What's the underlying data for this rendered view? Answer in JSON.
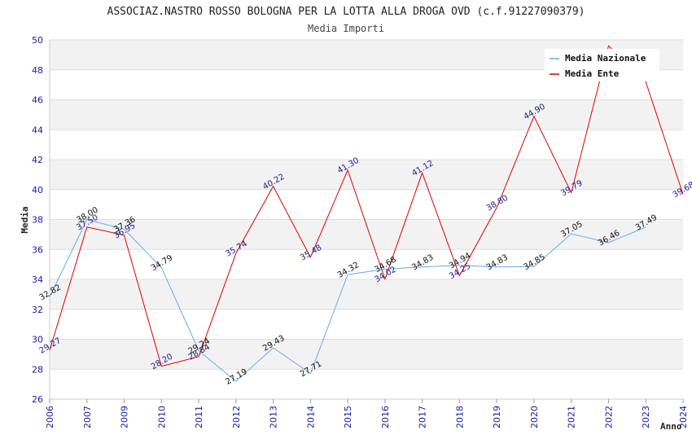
{
  "chart_data": {
    "type": "line",
    "title": "ASSOCIAZ.NASTRO ROSSO BOLOGNA PER LA LOTTA ALLA DROGA OVD (c.f.91227090379)",
    "subtitle": "Media Importi",
    "xlabel": "Anno",
    "ylabel": "Media",
    "ylim": [
      26,
      50
    ],
    "yticks": [
      26,
      28,
      30,
      32,
      34,
      36,
      38,
      40,
      42,
      44,
      46,
      48,
      50
    ],
    "categories": [
      "2006",
      "2007",
      "2009",
      "2010",
      "2011",
      "2012",
      "2013",
      "2014",
      "2015",
      "2016",
      "2017",
      "2018",
      "2019",
      "2020",
      "2021",
      "2022",
      "2023",
      "2024"
    ],
    "grid": true,
    "legend_position": "top-right",
    "series": [
      {
        "name": "Media Nazionale",
        "color": "#6aa9e6",
        "values": [
          32.82,
          38.0,
          37.36,
          34.79,
          29.24,
          27.19,
          29.43,
          27.71,
          34.32,
          34.68,
          34.83,
          34.94,
          34.83,
          34.85,
          37.05,
          36.46,
          37.49,
          null
        ],
        "labels": [
          "32.82",
          "38.00",
          "37.36",
          "34.79",
          "29.24",
          "27.19",
          "29.43",
          "27.71",
          "34.32",
          "34.68",
          "34.83",
          "34.94",
          "34.83",
          "34.85",
          "37.05",
          "36.46",
          "37.49",
          ""
        ]
      },
      {
        "name": "Media Ente",
        "color": "#dd0000",
        "values": [
          29.27,
          37.5,
          36.95,
          28.2,
          28.84,
          35.74,
          40.22,
          35.48,
          41.3,
          34.02,
          41.12,
          34.25,
          38.8,
          44.9,
          39.79,
          49.6,
          47.2,
          39.68
        ],
        "labels": [
          "29.27",
          "37.50",
          "36.95",
          "28.20",
          "28.84",
          "35.74",
          "40.22",
          "35.48",
          "41.30",
          "34.02",
          "41.12",
          "34.25",
          "38.80",
          "44.90",
          "39.79",
          "",
          "",
          "39.68"
        ]
      }
    ]
  }
}
